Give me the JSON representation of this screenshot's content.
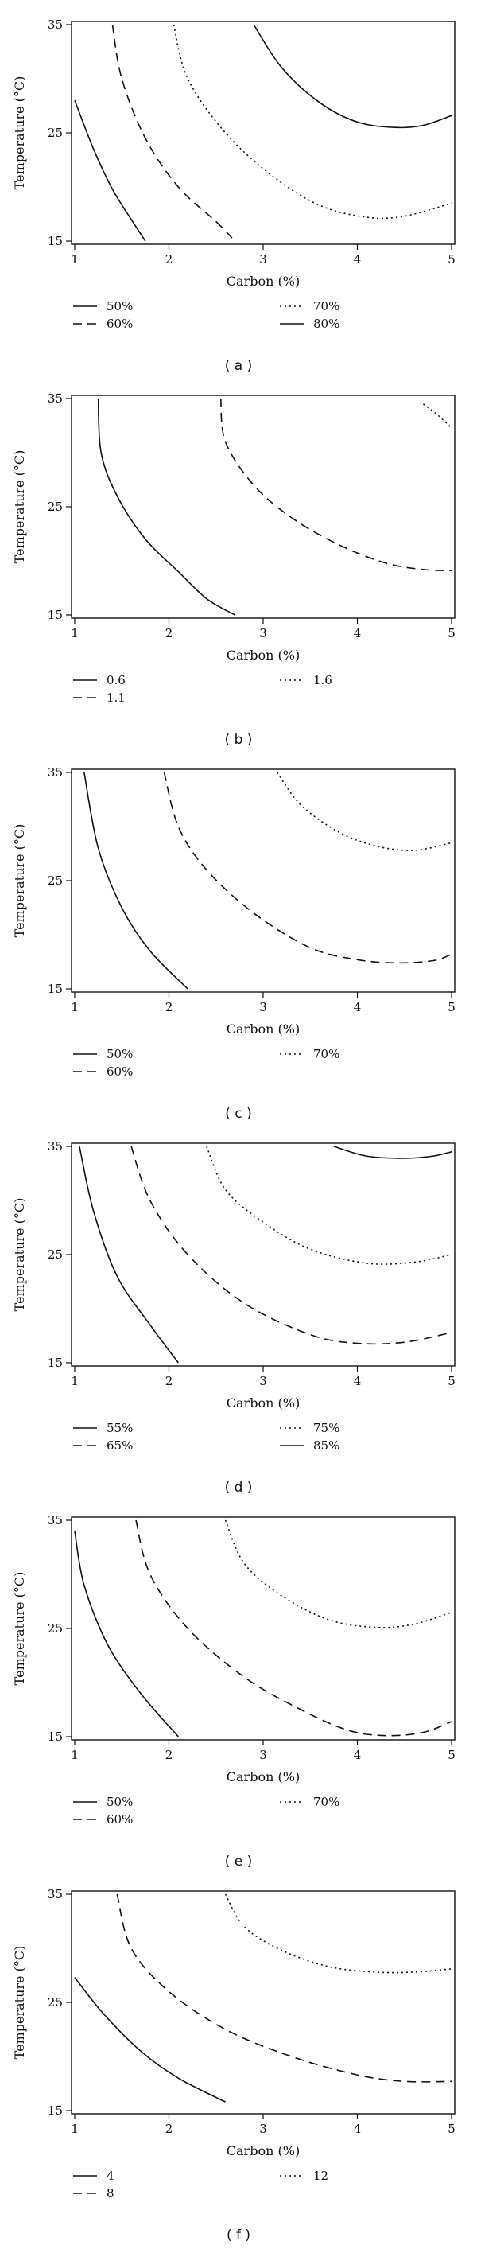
{
  "figure": {
    "axis_font_note": "serif"
  },
  "chart_data": [
    {
      "type": "contour",
      "panel_label": "( a )",
      "xlabel": "Carbon (%)",
      "ylabel": "Temperature (°C)",
      "xlim": [
        1,
        5
      ],
      "ylim": [
        15,
        35
      ],
      "xticks": [
        "1",
        "2",
        "3",
        "4",
        "5"
      ],
      "yticks": [
        "15",
        "25",
        "35"
      ],
      "legend": [
        {
          "label": "50%",
          "style": "solid"
        },
        {
          "label": "60%",
          "style": "dashed"
        },
        {
          "label": "70%",
          "style": "dotted"
        },
        {
          "label": "80%",
          "style": "solid"
        }
      ],
      "series": [
        {
          "name": "50%",
          "style": "solid",
          "points": [
            [
              1,
              28
            ],
            [
              1.2,
              23.5
            ],
            [
              1.4,
              19.8
            ],
            [
              1.6,
              17
            ],
            [
              1.75,
              15
            ]
          ]
        },
        {
          "name": "60%",
          "style": "dashed",
          "points": [
            [
              1.4,
              35
            ],
            [
              1.5,
              30
            ],
            [
              1.75,
              24.5
            ],
            [
              2.1,
              20
            ],
            [
              2.5,
              16.8
            ],
            [
              2.7,
              15
            ]
          ]
        },
        {
          "name": "70%",
          "style": "dotted",
          "points": [
            [
              2.05,
              35
            ],
            [
              2.2,
              30
            ],
            [
              2.6,
              25
            ],
            [
              3.1,
              21
            ],
            [
              3.6,
              18.3
            ],
            [
              4.1,
              17.2
            ],
            [
              4.5,
              17.3
            ],
            [
              5,
              18.5
            ]
          ]
        },
        {
          "name": "80%",
          "style": "solid",
          "points": [
            [
              2.9,
              35
            ],
            [
              3.2,
              31
            ],
            [
              3.6,
              27.8
            ],
            [
              4,
              26
            ],
            [
              4.4,
              25.5
            ],
            [
              4.7,
              25.7
            ],
            [
              5,
              26.6
            ]
          ]
        }
      ]
    },
    {
      "type": "contour",
      "panel_label": "( b )",
      "xlabel": "Carbon (%)",
      "ylabel": "Temperature (°C)",
      "xlim": [
        1,
        5
      ],
      "ylim": [
        15,
        35
      ],
      "xticks": [
        "1",
        "2",
        "3",
        "4",
        "5"
      ],
      "yticks": [
        "15",
        "25",
        "35"
      ],
      "legend": [
        {
          "label": "0.6",
          "style": "solid"
        },
        {
          "label": "1.1",
          "style": "dashed"
        },
        {
          "label": "1.6",
          "style": "dotted"
        }
      ],
      "series": [
        {
          "name": "0.6",
          "style": "solid",
          "points": [
            [
              1.25,
              35
            ],
            [
              1.28,
              30
            ],
            [
              1.45,
              26
            ],
            [
              1.75,
              22
            ],
            [
              2.1,
              19
            ],
            [
              2.4,
              16.5
            ],
            [
              2.7,
              15
            ]
          ]
        },
        {
          "name": "1.1",
          "style": "dashed",
          "points": [
            [
              2.55,
              35
            ],
            [
              2.6,
              31
            ],
            [
              2.9,
              27
            ],
            [
              3.3,
              24
            ],
            [
              3.8,
              21.5
            ],
            [
              4.3,
              19.8
            ],
            [
              4.7,
              19.2
            ],
            [
              5,
              19.1
            ]
          ]
        },
        {
          "name": "1.6",
          "style": "dotted",
          "points": [
            [
              4.7,
              34.5
            ],
            [
              4.85,
              33.5
            ],
            [
              5,
              32.3
            ]
          ]
        }
      ]
    },
    {
      "type": "contour",
      "panel_label": "( c )",
      "xlabel": "Carbon (%)",
      "ylabel": "Temperature (°C)",
      "xlim": [
        1,
        5
      ],
      "ylim": [
        15,
        35
      ],
      "xticks": [
        "1",
        "2",
        "3",
        "4",
        "5"
      ],
      "yticks": [
        "15",
        "25",
        "35"
      ],
      "legend": [
        {
          "label": "50%",
          "style": "solid"
        },
        {
          "label": "60%",
          "style": "dashed"
        },
        {
          "label": "70%",
          "style": "dotted"
        }
      ],
      "series": [
        {
          "name": "50%",
          "style": "solid",
          "points": [
            [
              1.1,
              35
            ],
            [
              1.25,
              28
            ],
            [
              1.5,
              22.5
            ],
            [
              1.8,
              18.5
            ],
            [
              2.2,
              15
            ]
          ]
        },
        {
          "name": "60%",
          "style": "dashed",
          "points": [
            [
              1.95,
              35
            ],
            [
              2.1,
              30
            ],
            [
              2.4,
              26
            ],
            [
              2.9,
              22
            ],
            [
              3.5,
              18.8
            ],
            [
              4,
              17.7
            ],
            [
              4.4,
              17.4
            ],
            [
              4.8,
              17.6
            ],
            [
              5,
              18.2
            ]
          ]
        },
        {
          "name": "70%",
          "style": "dotted",
          "points": [
            [
              3.15,
              35
            ],
            [
              3.4,
              32
            ],
            [
              3.8,
              29.5
            ],
            [
              4.2,
              28.2
            ],
            [
              4.6,
              27.8
            ],
            [
              5,
              28.5
            ]
          ]
        }
      ]
    },
    {
      "type": "contour",
      "panel_label": "( d )",
      "xlabel": "Carbon (%)",
      "ylabel": "Temperature (°C)",
      "xlim": [
        1,
        5
      ],
      "ylim": [
        15,
        35
      ],
      "xticks": [
        "1",
        "2",
        "3",
        "4",
        "5"
      ],
      "yticks": [
        "15",
        "25",
        "35"
      ],
      "legend": [
        {
          "label": "55%",
          "style": "solid"
        },
        {
          "label": "65%",
          "style": "dashed"
        },
        {
          "label": "75%",
          "style": "dotted"
        },
        {
          "label": "85%",
          "style": "solid"
        }
      ],
      "series": [
        {
          "name": "55%",
          "style": "solid",
          "points": [
            [
              1.05,
              35
            ],
            [
              1.2,
              29
            ],
            [
              1.45,
              23
            ],
            [
              1.8,
              18.5
            ],
            [
              2.1,
              15
            ]
          ]
        },
        {
          "name": "65%",
          "style": "dashed",
          "points": [
            [
              1.6,
              35
            ],
            [
              1.8,
              30
            ],
            [
              2.2,
              25
            ],
            [
              2.8,
              20.5
            ],
            [
              3.5,
              17.6
            ],
            [
              4,
              16.8
            ],
            [
              4.5,
              16.9
            ],
            [
              5,
              17.8
            ]
          ]
        },
        {
          "name": "75%",
          "style": "dotted",
          "points": [
            [
              2.4,
              35
            ],
            [
              2.6,
              31
            ],
            [
              3,
              28
            ],
            [
              3.5,
              25.5
            ],
            [
              4.1,
              24.2
            ],
            [
              4.6,
              24.3
            ],
            [
              5,
              25
            ]
          ]
        },
        {
          "name": "85%",
          "style": "solid",
          "points": [
            [
              3.75,
              35
            ],
            [
              4.1,
              34.1
            ],
            [
              4.5,
              33.9
            ],
            [
              4.8,
              34.1
            ],
            [
              5,
              34.5
            ]
          ]
        }
      ]
    },
    {
      "type": "contour",
      "panel_label": "( e )",
      "xlabel": "Carbon (%)",
      "ylabel": "Temperature (°C)",
      "xlim": [
        1,
        5
      ],
      "ylim": [
        15,
        35
      ],
      "xticks": [
        "1",
        "2",
        "3",
        "4",
        "5"
      ],
      "yticks": [
        "15",
        "25",
        "35"
      ],
      "legend": [
        {
          "label": "50%",
          "style": "solid"
        },
        {
          "label": "60%",
          "style": "dashed"
        },
        {
          "label": "70%",
          "style": "dotted"
        }
      ],
      "series": [
        {
          "name": "50%",
          "style": "solid",
          "points": [
            [
              1,
              34
            ],
            [
              1.1,
              29
            ],
            [
              1.35,
              23.5
            ],
            [
              1.7,
              19
            ],
            [
              2.1,
              15
            ]
          ]
        },
        {
          "name": "60%",
          "style": "dashed",
          "points": [
            [
              1.65,
              35
            ],
            [
              1.8,
              30
            ],
            [
              2.2,
              25
            ],
            [
              2.8,
              20.5
            ],
            [
              3.4,
              17.5
            ],
            [
              3.9,
              15.6
            ],
            [
              4.3,
              15.1
            ],
            [
              4.7,
              15.4
            ],
            [
              5,
              16.4
            ]
          ]
        },
        {
          "name": "70%",
          "style": "dotted",
          "points": [
            [
              2.6,
              35
            ],
            [
              2.8,
              31
            ],
            [
              3.2,
              28
            ],
            [
              3.7,
              25.8
            ],
            [
              4.2,
              25.1
            ],
            [
              4.6,
              25.4
            ],
            [
              5,
              26.5
            ]
          ]
        }
      ]
    },
    {
      "type": "contour",
      "panel_label": "( f )",
      "xlabel": "Carbon (%)",
      "ylabel": "Temperature (°C)",
      "xlim": [
        1,
        5
      ],
      "ylim": [
        15,
        35
      ],
      "xticks": [
        "1",
        "2",
        "3",
        "4",
        "5"
      ],
      "yticks": [
        "15",
        "25",
        "35"
      ],
      "legend": [
        {
          "label": "4",
          "style": "solid"
        },
        {
          "label": "8",
          "style": "dashed"
        },
        {
          "label": "12",
          "style": "dotted"
        }
      ],
      "series": [
        {
          "name": "4",
          "style": "solid",
          "points": [
            [
              1,
              27.3
            ],
            [
              1.3,
              24
            ],
            [
              1.7,
              20.5
            ],
            [
              2.1,
              18
            ],
            [
              2.6,
              15.8
            ]
          ]
        },
        {
          "name": "8",
          "style": "dashed",
          "points": [
            [
              1.45,
              35
            ],
            [
              1.6,
              30
            ],
            [
              2,
              26
            ],
            [
              2.6,
              22.5
            ],
            [
              3.3,
              20
            ],
            [
              4,
              18.3
            ],
            [
              4.5,
              17.7
            ],
            [
              5,
              17.7
            ]
          ]
        },
        {
          "name": "12",
          "style": "dotted",
          "points": [
            [
              2.6,
              35
            ],
            [
              2.8,
              32
            ],
            [
              3.2,
              29.8
            ],
            [
              3.7,
              28.3
            ],
            [
              4.2,
              27.8
            ],
            [
              4.6,
              27.8
            ],
            [
              5,
              28.1
            ]
          ]
        }
      ]
    }
  ]
}
